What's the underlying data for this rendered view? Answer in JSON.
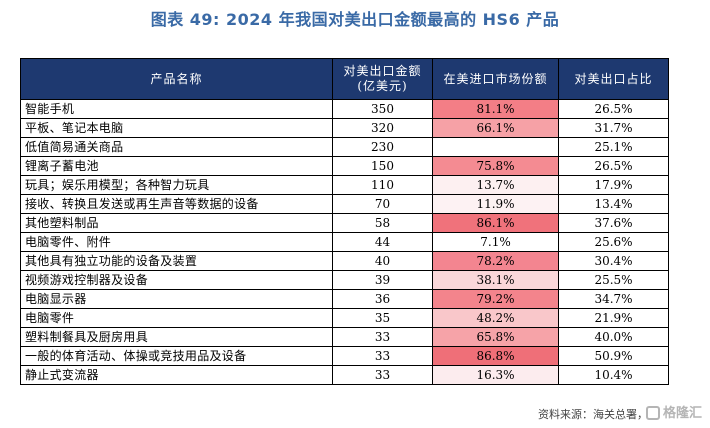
{
  "title": "图表 49: 2024 年我国对美出口金额最高的 HS6 产品",
  "table": {
    "headers": {
      "name": "产品名称",
      "export_line1": "对美出口金额",
      "export_line2": "(亿美元)",
      "share": "在美进口市场份额",
      "ratio": "对美出口占比"
    },
    "rows": [
      {
        "name": "智能手机",
        "export": "350",
        "share": "81.1%",
        "ratio": "26.5%",
        "highlight": "#f37e86"
      },
      {
        "name": "平板、笔记本电脑",
        "export": "320",
        "share": "66.1%",
        "ratio": "31.7%",
        "highlight": "#f6a1a6"
      },
      {
        "name": "低值简易通关商品",
        "export": "230",
        "share": "",
        "ratio": "25.1%",
        "highlight": ""
      },
      {
        "name": "锂离子蓄电池",
        "export": "150",
        "share": "75.8%",
        "ratio": "26.5%",
        "highlight": "#f48b92"
      },
      {
        "name": "玩具；娱乐用模型；各种智力玩具",
        "export": "110",
        "share": "13.7%",
        "ratio": "17.9%",
        "highlight": "#fdf0f1"
      },
      {
        "name": "接收、转换且发送或再生声音等数据的设备",
        "export": "70",
        "share": "11.9%",
        "ratio": "13.4%",
        "highlight": "#fdf2f3"
      },
      {
        "name": "其他塑料制品",
        "export": "58",
        "share": "86.1%",
        "ratio": "37.6%",
        "highlight": "#f0727b"
      },
      {
        "name": "电脑零件、附件",
        "export": "44",
        "share": "7.1%",
        "ratio": "25.6%",
        "highlight": "#ffffff"
      },
      {
        "name": "其他具有独立功能的设备及装置",
        "export": "40",
        "share": "78.2%",
        "ratio": "30.4%",
        "highlight": "#f38590"
      },
      {
        "name": "视频游戏控制器及设备",
        "export": "39",
        "share": "38.1%",
        "ratio": "25.5%",
        "highlight": "#fad7d9"
      },
      {
        "name": "电脑显示器",
        "export": "36",
        "share": "79.2%",
        "ratio": "34.7%",
        "highlight": "#f3848c"
      },
      {
        "name": "电脑零件",
        "export": "35",
        "share": "48.2%",
        "ratio": "21.9%",
        "highlight": "#f9c7ca"
      },
      {
        "name": "塑料制餐具及厨房用具",
        "export": "33",
        "share": "65.8%",
        "ratio": "40.0%",
        "highlight": "#f6a3a8"
      },
      {
        "name": "一般的体育活动、体操或竞技用品及设备",
        "export": "33",
        "share": "86.8%",
        "ratio": "50.9%",
        "highlight": "#ef6f78"
      },
      {
        "name": "静止式变流器",
        "export": "33",
        "share": "16.3%",
        "ratio": "10.4%",
        "highlight": "#fcecee"
      }
    ]
  },
  "source": "资料来源：海关总署，",
  "watermark": "格隆汇"
}
